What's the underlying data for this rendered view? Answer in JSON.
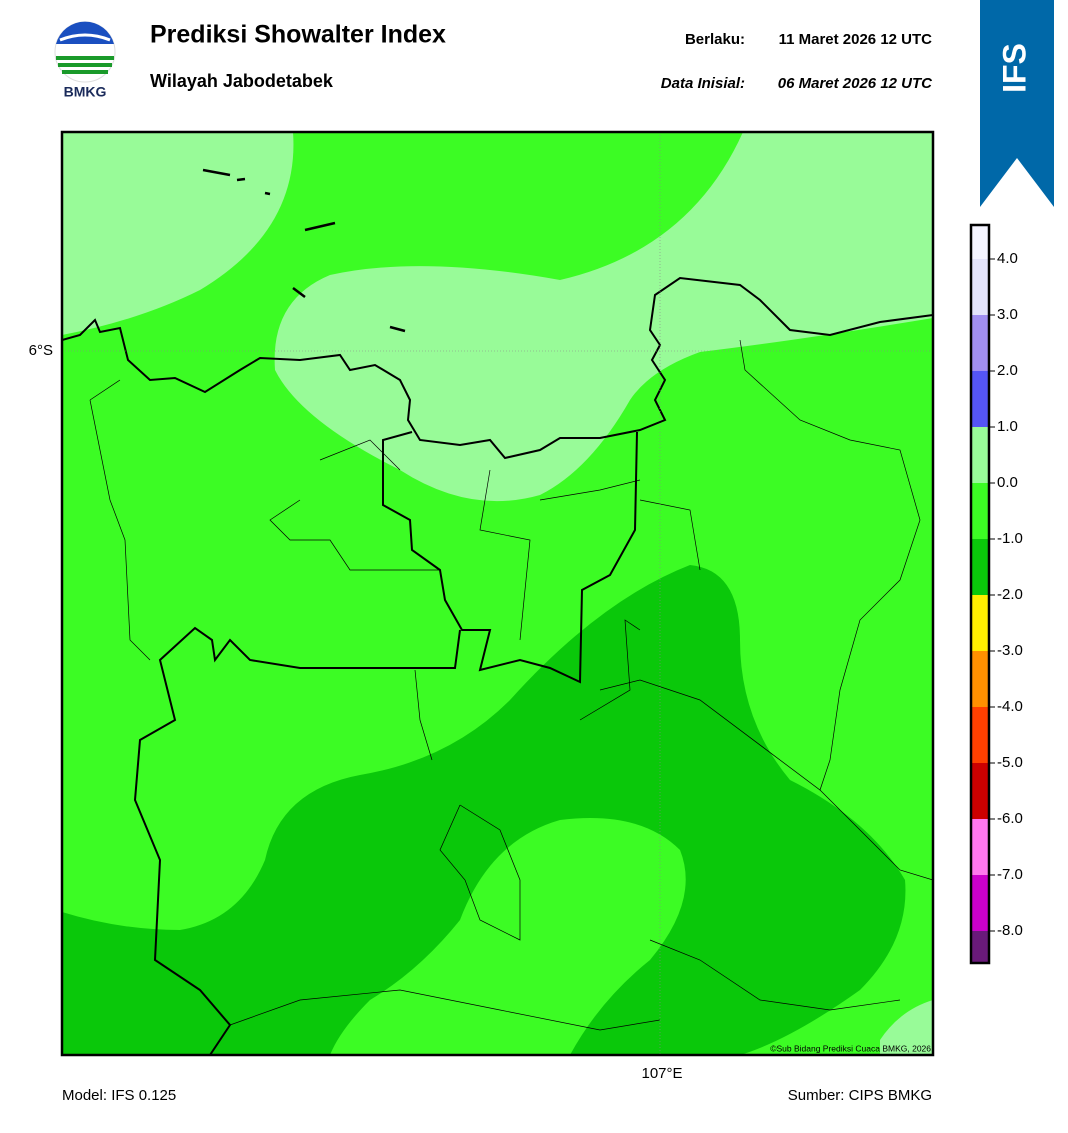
{
  "header": {
    "title": "Prediksi Showalter Index",
    "subtitle": "Wilayah Jabodetabek",
    "valid_label": "Berlaku:",
    "valid_date": "11 Maret 2026 12 UTC",
    "init_label": "Data Inisial:",
    "init_date": "06 Maret 2026 12 UTC",
    "logo_text": "BMKG",
    "model_badge": "IFS"
  },
  "map": {
    "lat_label": "6°S",
    "lon_label": "107°E",
    "credit": "©Sub Bidang Prediksi Cuaca BMKG, 2026"
  },
  "colorbar": {
    "ticks": [
      {
        "value": 4,
        "label": "4.0"
      },
      {
        "value": 3,
        "label": "3.0"
      },
      {
        "value": 2,
        "label": "2.0"
      },
      {
        "value": 1,
        "label": "1.0"
      },
      {
        "value": 0,
        "label": "0.0"
      },
      {
        "value": -1,
        "label": "-1.0"
      },
      {
        "value": -2,
        "label": "-2.0"
      },
      {
        "value": -3,
        "label": "-3.0"
      },
      {
        "value": -4,
        "label": "-4.0"
      },
      {
        "value": -5,
        "label": "-5.0"
      },
      {
        "value": -6,
        "label": "-6.0"
      },
      {
        "value": -7,
        "label": "-7.0"
      },
      {
        "value": -8,
        "label": "-8.0"
      }
    ],
    "colors": [
      "#f4f4ff",
      "#e2e2fa",
      "#a08ef0",
      "#5555f5",
      "#98fb98",
      "#3cfc24",
      "#0ac80a",
      "#ffee00",
      "#ff9000",
      "#ff4000",
      "#cc0000",
      "#ff77ee",
      "#cc00cc",
      "#6a1a7a"
    ]
  },
  "footer": {
    "model": "Model: IFS 0.125",
    "source": "Sumber: CIPS BMKG"
  }
}
